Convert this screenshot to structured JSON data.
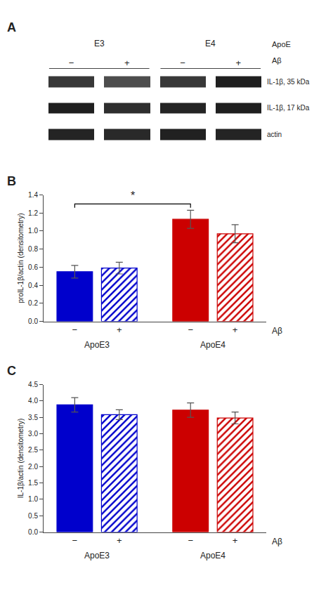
{
  "chart_data": [
    {
      "type": "heatmap",
      "title": "A",
      "x": [
        "−",
        "+",
        "−",
        "+"
      ],
      "x_groups": [
        "E3",
        "E3",
        "E4",
        "E4"
      ],
      "group_label": "ApoE",
      "xlabel": "Aβ",
      "y": [
        "IL-1β, 35 kDa",
        "IL-1β, 17 kDa",
        "actin"
      ],
      "cells": [
        [
          0.22,
          0.3,
          0.22,
          0.12
        ],
        [
          0.12,
          0.18,
          0.14,
          0.12
        ],
        [
          0.14,
          0.16,
          0.13,
          0.14
        ]
      ],
      "zlim": [
        0,
        1
      ]
    },
    {
      "type": "bar",
      "title": "B",
      "categories": [
        "ApoE3",
        "ApoE4"
      ],
      "series": [
        {
          "name": "−",
          "marker": "solid",
          "colors": [
            "#0000CC",
            "#CC0000"
          ],
          "values": [
            0.55,
            1.13
          ],
          "errors": [
            0.07,
            0.1
          ]
        },
        {
          "name": "+",
          "marker": "hatched",
          "colors": [
            "#0000CC",
            "#CC0000"
          ],
          "values": [
            0.59,
            0.97
          ],
          "errors": [
            0.065,
            0.1
          ]
        }
      ],
      "xlabel": "Aβ",
      "ylabel": "proIL-1β/actin (densitometry)",
      "ylim": [
        0.0,
        1.4
      ],
      "yticks": [
        {
          "value": 0.0,
          "label": "0.0"
        },
        0.2,
        0.4,
        0.6,
        0.8,
        {
          "value": 1.0,
          "label": "1.0"
        },
        1.2,
        1.4
      ],
      "grid": false,
      "annotations": [
        {
          "text": "*",
          "y": 1.31,
          "bracket_y": 1.3,
          "between": [
            {
              "category": "ApoE3",
              "series": "−"
            },
            {
              "category": "ApoE4",
              "series": "−"
            }
          ]
        }
      ]
    },
    {
      "type": "bar",
      "title": "C",
      "categories": [
        "ApoE3",
        "ApoE4"
      ],
      "series": [
        {
          "name": "−",
          "marker": "solid",
          "colors": [
            "#0000CC",
            "#CC0000"
          ],
          "values": [
            3.88,
            3.72
          ],
          "errors": [
            0.22,
            0.22
          ]
        },
        {
          "name": "+",
          "marker": "hatched",
          "colors": [
            "#0000CC",
            "#CC0000"
          ],
          "values": [
            3.58,
            3.48
          ],
          "errors": [
            0.15,
            0.18
          ]
        }
      ],
      "xlabel": "Aβ",
      "ylabel": "IL-1β/actin (densitometry)",
      "ylim": [
        0.0,
        4.5
      ],
      "yticks": [
        {
          "value": 0.0,
          "label": "0.0"
        },
        0.5,
        {
          "value": 1.0,
          "label": "1.0"
        },
        1.5,
        {
          "value": 2.0,
          "label": "2.0"
        },
        2.5,
        {
          "value": 3.0,
          "label": "3.0"
        },
        3.5,
        {
          "value": 4.0,
          "label": "4.0"
        },
        4.5
      ],
      "grid": false
    }
  ]
}
